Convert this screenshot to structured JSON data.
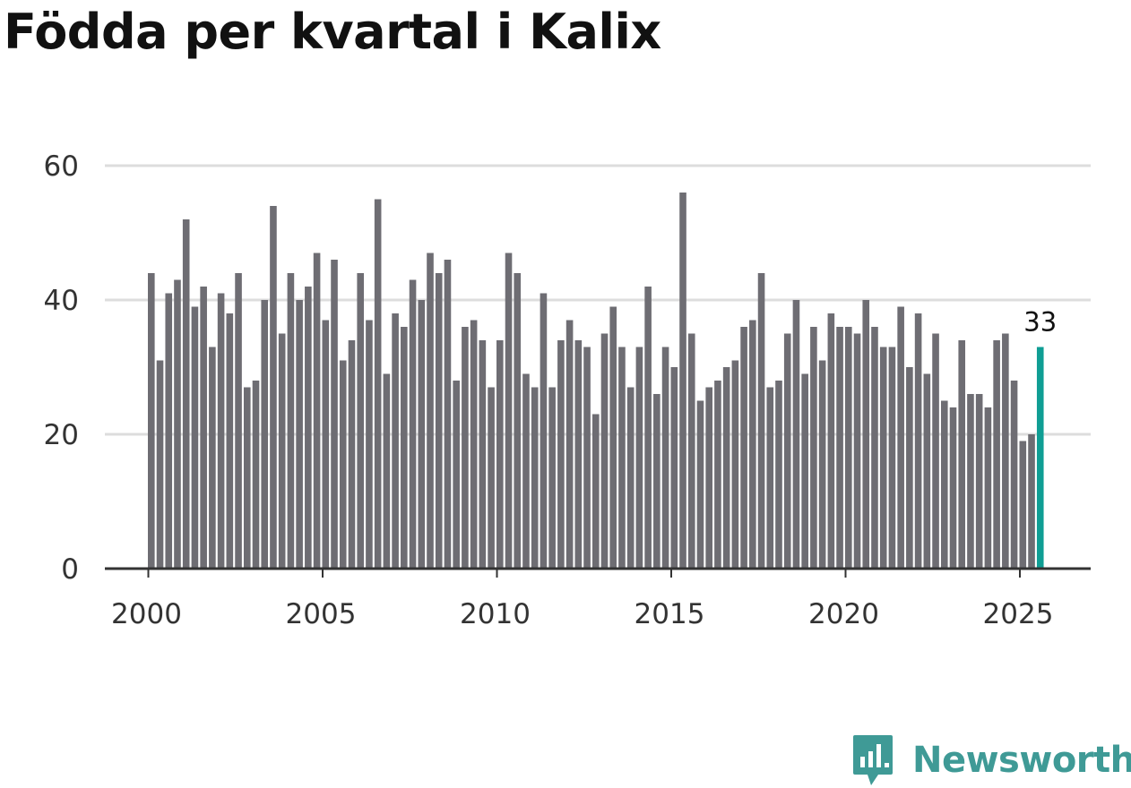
{
  "title": "Födda per kvartal i Kalix",
  "brand": "Newsworthy",
  "colors": {
    "bar": "#6e6d73",
    "highlight": "#0f9e94",
    "grid": "#dddddd",
    "axis": "#333333",
    "brand": "#3f9a96"
  },
  "chart_data": {
    "type": "bar",
    "title": "Födda per kvartal i Kalix",
    "xlabel": "",
    "ylabel": "",
    "ylim": [
      0,
      60
    ],
    "yticks": [
      0,
      20,
      40,
      60
    ],
    "xticks": [
      2000,
      2005,
      2010,
      2015,
      2020,
      2025
    ],
    "x_start": {
      "year": 2000,
      "quarter": 1
    },
    "grid": true,
    "highlight_last": true,
    "last_label": "33",
    "values": [
      44,
      31,
      41,
      43,
      52,
      39,
      42,
      33,
      41,
      38,
      44,
      27,
      28,
      40,
      54,
      35,
      44,
      40,
      42,
      47,
      37,
      46,
      31,
      34,
      44,
      37,
      55,
      29,
      38,
      36,
      43,
      40,
      47,
      44,
      46,
      28,
      36,
      37,
      34,
      27,
      34,
      47,
      44,
      29,
      27,
      41,
      27,
      34,
      37,
      34,
      33,
      23,
      35,
      39,
      33,
      27,
      33,
      42,
      26,
      33,
      30,
      56,
      35,
      25,
      27,
      28,
      30,
      31,
      36,
      37,
      44,
      27,
      28,
      35,
      40,
      29,
      36,
      31,
      38,
      36,
      36,
      35,
      40,
      36,
      33,
      33,
      39,
      30,
      38,
      29,
      35,
      25,
      24,
      34,
      26,
      26,
      24,
      34,
      35,
      28,
      19,
      20,
      33
    ]
  }
}
